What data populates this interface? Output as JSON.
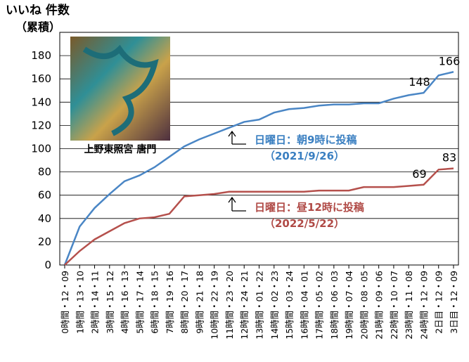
{
  "chart_data": {
    "type": "line",
    "title": "いいね 件数",
    "subtitle": "（累積）",
    "photo_caption": "上野東照宮 唐門",
    "categories": [
      "0時間・12・09",
      "1時間・13・10",
      "2時間・14・11",
      "3時間・15・12",
      "4時間・16・13",
      "5時間・17・14",
      "6時間・18・15",
      "7時間・19・16",
      "8時間・20・17",
      "9時間・21・18",
      "10時間・22・19",
      "11時間・23・20",
      "12時間・24・21",
      "13時間・01・22",
      "14時間・02・23",
      "15時間・03・24",
      "16時間・04・01",
      "17時間・05・02",
      "18時間・06・03",
      "19時間・07・04",
      "20時間・08・05",
      "21時間・09・06",
      "22時間・10・07",
      "23時間・11・08",
      "24時間・12・09",
      "2日目・12・09",
      "3日目・12・09"
    ],
    "series": [
      {
        "name": "日曜日：朝9時に投稿",
        "note": "（2021/9/26）",
        "color": "#4a86c5",
        "values": [
          0,
          33,
          49,
          61,
          72,
          77,
          84,
          93,
          102,
          108,
          113,
          118,
          123,
          125,
          131,
          134,
          135,
          137,
          138,
          138,
          139,
          139,
          143,
          146,
          148,
          163,
          166
        ],
        "labeled_indices": [
          24,
          26
        ]
      },
      {
        "name": "日曜日：昼12時に投稿",
        "note": "（2022/5/22）",
        "color": "#b5504c",
        "values": [
          0,
          12,
          22,
          29,
          36,
          40,
          41,
          44,
          59,
          60,
          61,
          63,
          63,
          63,
          63,
          63,
          63,
          64,
          64,
          64,
          67,
          67,
          67,
          68,
          69,
          82,
          83
        ],
        "labeled_indices": [
          24,
          26
        ]
      }
    ],
    "ylim": [
      0,
      200
    ],
    "yticks": [
      0,
      20,
      40,
      60,
      80,
      100,
      120,
      140,
      160,
      180
    ],
    "grid": true
  }
}
